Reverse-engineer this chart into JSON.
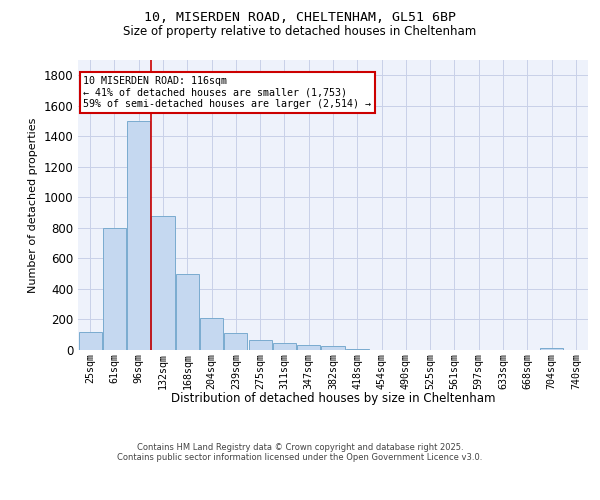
{
  "title_line1": "10, MISERDEN ROAD, CHELTENHAM, GL51 6BP",
  "title_line2": "Size of property relative to detached houses in Cheltenham",
  "xlabel": "Distribution of detached houses by size in Cheltenham",
  "ylabel": "Number of detached properties",
  "footer_line1": "Contains HM Land Registry data © Crown copyright and database right 2025.",
  "footer_line2": "Contains public sector information licensed under the Open Government Licence v3.0.",
  "categories": [
    "25sqm",
    "61sqm",
    "96sqm",
    "132sqm",
    "168sqm",
    "204sqm",
    "239sqm",
    "275sqm",
    "311sqm",
    "347sqm",
    "382sqm",
    "418sqm",
    "454sqm",
    "490sqm",
    "525sqm",
    "561sqm",
    "597sqm",
    "633sqm",
    "668sqm",
    "704sqm",
    "740sqm"
  ],
  "values": [
    120,
    800,
    1500,
    880,
    500,
    210,
    110,
    65,
    45,
    35,
    25,
    5,
    3,
    2,
    2,
    1,
    1,
    0,
    0,
    15,
    0
  ],
  "bar_color": "#c5d8f0",
  "bar_edge_color": "#7aabcf",
  "background_color": "#eef2fb",
  "grid_color": "#c8d0e8",
  "vline_x_index": 2.5,
  "vline_color": "#cc0000",
  "annotation_text": "10 MISERDEN ROAD: 116sqm\n← 41% of detached houses are smaller (1,753)\n59% of semi-detached houses are larger (2,514) →",
  "annotation_box_facecolor": "#ffffff",
  "annotation_box_edgecolor": "#cc0000",
  "ylim": [
    0,
    1900
  ],
  "yticks": [
    0,
    200,
    400,
    600,
    800,
    1000,
    1200,
    1400,
    1600,
    1800
  ]
}
